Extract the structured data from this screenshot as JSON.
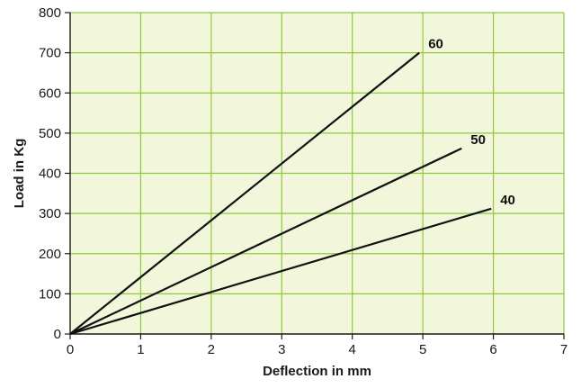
{
  "chart_data": {
    "type": "line",
    "title": "",
    "xlabel": "Deflection in mm",
    "ylabel": "Load in Kg",
    "xlim": [
      0,
      7
    ],
    "ylim": [
      0,
      800
    ],
    "x_ticks": [
      0,
      1,
      2,
      3,
      4,
      5,
      6,
      7
    ],
    "y_ticks": [
      0,
      100,
      200,
      300,
      400,
      500,
      600,
      700,
      800
    ],
    "grid": true,
    "legend": "none",
    "colors": {
      "plot_background": "#f2f7dc",
      "grid": "#8fc83c",
      "series_line": "#111111"
    },
    "series": [
      {
        "name": "60",
        "x": [
          0,
          4.95
        ],
        "y": [
          0,
          700
        ]
      },
      {
        "name": "50",
        "x": [
          0,
          5.55
        ],
        "y": [
          0,
          462
        ]
      },
      {
        "name": "40",
        "x": [
          0,
          5.97
        ],
        "y": [
          0,
          312
        ]
      }
    ]
  }
}
